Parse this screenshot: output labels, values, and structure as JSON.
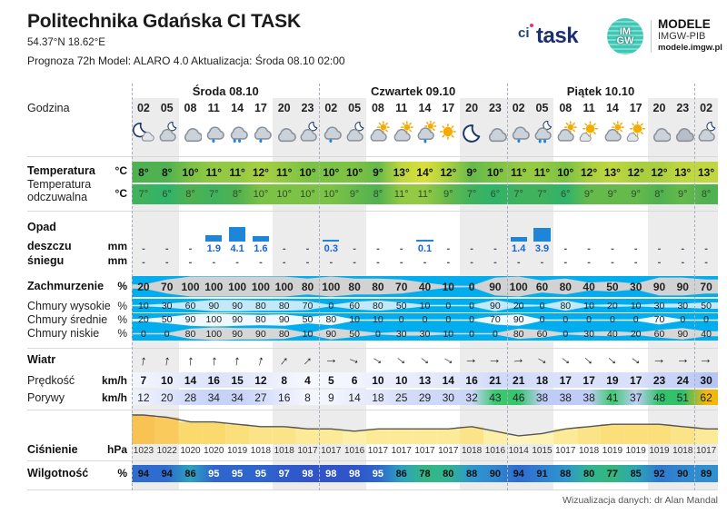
{
  "header": {
    "title": "Politechnika Gdańska CI TASK",
    "coords": "54.37°N  18.62°E",
    "meta": "Prognoza 72h   Model:  ALARO 4.0   Aktualizacja:  Środa 08.10 02:00",
    "logo_citask": {
      "ci": "ci",
      "task": "task"
    },
    "logo_imgw": {
      "circle_line1": "IM",
      "circle_line2": "GW",
      "title": "MODELE",
      "subtitle": "IMGW-PIB",
      "url": "modele.imgw.pl"
    }
  },
  "footer": {
    "credit": "Wizualizacja danych: dr Alan Mandal"
  },
  "labels": {
    "godzina": "Godzina",
    "temperatura": "Temperatura",
    "temperatura_unit": "°C",
    "odczuwalna": "Temperatura odczuwalna",
    "odczuwalna_unit": "°C",
    "opad": "Opad",
    "deszczu": "deszczu",
    "deszczu_unit": "mm",
    "sniegu": "śniegu",
    "sniegu_unit": "mm",
    "zachmurzenie": "Zachmurzenie",
    "zachmurzenie_unit": "%",
    "wysokie": "Chmury wysokie",
    "wysokie_unit": "%",
    "srednie": "Chmury średnie",
    "srednie_unit": "%",
    "niskie": "Chmury niskie",
    "niskie_unit": "%",
    "wiatr": "Wiatr",
    "predkosc": "Prędkość",
    "predkosc_unit": "km/h",
    "porywy": "Porywy",
    "porywy_unit": "km/h",
    "cisnienie": "Ciśnienie",
    "cisnienie_unit": "hPa",
    "wilgotnosc": "Wilgotność",
    "wilgotnosc_unit": "%"
  },
  "chart_data": {
    "type": "table",
    "days": [
      {
        "label": "Środa 08.10",
        "start": 0,
        "span": 8
      },
      {
        "label": "Czwartek 09.10",
        "start": 8,
        "span": 8
      },
      {
        "label": "Piątek 10.10",
        "start": 16,
        "span": 8
      }
    ],
    "hours": [
      "02",
      "05",
      "08",
      "11",
      "14",
      "17",
      "20",
      "23",
      "02",
      "05",
      "08",
      "11",
      "14",
      "17",
      "20",
      "23",
      "02",
      "05",
      "08",
      "11",
      "14",
      "17",
      "20",
      "23",
      "02"
    ],
    "night_columns": [
      0,
      1,
      6,
      7,
      8,
      9,
      14,
      15,
      16,
      17,
      22,
      23,
      24
    ],
    "icons": [
      "moon-cloud",
      "cloud-moon",
      "cloud",
      "cloud-rain-1",
      "cloud-rain-2",
      "cloud-rain-1",
      "cloud",
      "cloud-moon",
      "cloud-rain-1",
      "cloud-moon",
      "cloud-sun",
      "cloud-sun",
      "cloud-sun-rain-1",
      "sun",
      "moon",
      "cloud",
      "cloud-rain-1",
      "cloud-moon-rain-2",
      "cloud-sun",
      "sun-cloud",
      "cloud-sun",
      "sun-cloud",
      "cloud",
      "cloud-dark",
      "cloud-moon"
    ],
    "temperature": [
      8,
      8,
      10,
      11,
      11,
      12,
      11,
      10,
      10,
      10,
      9,
      13,
      14,
      12,
      9,
      10,
      11,
      11,
      10,
      12,
      13,
      12,
      12,
      13,
      13
    ],
    "feels_like": [
      7,
      6,
      8,
      7,
      8,
      10,
      10,
      10,
      10,
      9,
      8,
      11,
      11,
      9,
      7,
      6,
      7,
      7,
      6,
      9,
      9,
      9,
      8,
      9,
      8
    ],
    "rain_mm": [
      null,
      null,
      null,
      1.9,
      4.1,
      1.6,
      null,
      null,
      0.3,
      null,
      null,
      null,
      0.1,
      null,
      null,
      null,
      1.4,
      3.9,
      null,
      null,
      null,
      null,
      null,
      null,
      null
    ],
    "snow_mm": [
      null,
      null,
      null,
      null,
      null,
      null,
      null,
      null,
      null,
      null,
      null,
      null,
      null,
      null,
      null,
      null,
      null,
      null,
      null,
      null,
      null,
      null,
      null,
      null,
      null
    ],
    "cloud_total": [
      20,
      70,
      100,
      100,
      100,
      100,
      100,
      80,
      100,
      80,
      80,
      70,
      40,
      10,
      0,
      90,
      100,
      60,
      80,
      40,
      50,
      30,
      90,
      90,
      70
    ],
    "cloud_high": [
      10,
      30,
      60,
      90,
      90,
      80,
      80,
      70,
      0,
      60,
      80,
      50,
      10,
      0,
      0,
      90,
      20,
      0,
      80,
      10,
      20,
      10,
      30,
      30,
      50
    ],
    "cloud_mid": [
      20,
      50,
      90,
      100,
      90,
      80,
      90,
      50,
      80,
      10,
      10,
      0,
      0,
      0,
      0,
      70,
      90,
      0,
      0,
      0,
      0,
      0,
      70,
      0,
      0
    ],
    "cloud_low": [
      0,
      0,
      80,
      100,
      90,
      90,
      80,
      10,
      90,
      50,
      0,
      30,
      30,
      10,
      0,
      0,
      80,
      60,
      0,
      30,
      40,
      20,
      60,
      90,
      40
    ],
    "wind_dir_deg": [
      10,
      10,
      5,
      5,
      8,
      15,
      40,
      45,
      90,
      112,
      122,
      127,
      127,
      120,
      88,
      92,
      85,
      120,
      127,
      132,
      130,
      125,
      92,
      90,
      90
    ],
    "wind_speed": [
      7,
      10,
      14,
      16,
      15,
      12,
      8,
      4,
      5,
      6,
      10,
      10,
      13,
      14,
      16,
      21,
      21,
      18,
      17,
      17,
      19,
      17,
      23,
      24,
      30
    ],
    "wind_gusts": [
      12,
      20,
      28,
      34,
      34,
      27,
      16,
      8,
      9,
      14,
      18,
      25,
      29,
      30,
      32,
      43,
      46,
      38,
      38,
      38,
      41,
      37,
      48,
      51,
      62
    ],
    "pressure": [
      1023,
      1022,
      1020,
      1020,
      1019,
      1018,
      1018,
      1017,
      1017,
      1016,
      1017,
      1017,
      1017,
      1017,
      1018,
      1016,
      1014,
      1015,
      1017,
      1018,
      1019,
      1019,
      1019,
      1018,
      1017
    ],
    "humidity": [
      94,
      94,
      86,
      95,
      95,
      95,
      97,
      98,
      98,
      98,
      95,
      86,
      78,
      80,
      88,
      90,
      94,
      91,
      88,
      80,
      77,
      85,
      92,
      90,
      89
    ]
  },
  "colors": {
    "band_blue": "#00aeef",
    "lens_total": "#d2d2d2",
    "lens_high": "#c3e9f8",
    "lens_mid": "#eef8fd",
    "lens_low": "#d6d6d6",
    "rain_bar": "#1e86d8",
    "rain_text": "#1565d8",
    "dash_text": "#4a5568",
    "night_shade": "#ececec",
    "pressure_line": "#555555",
    "link": "#1c63d6",
    "temp_scale": [
      [
        6,
        "#2fb36a"
      ],
      [
        8,
        "#50b150"
      ],
      [
        10,
        "#7cc245"
      ],
      [
        12,
        "#a9cf41"
      ],
      [
        14,
        "#d9df3c"
      ]
    ],
    "speed_scale": [
      [
        4,
        "#f6f8fe"
      ],
      [
        12,
        "#e7ecfc"
      ],
      [
        20,
        "#d3dcf9"
      ],
      [
        30,
        "#b6c5f4"
      ]
    ],
    "gust_scale": [
      [
        8,
        "#f4f6fe"
      ],
      [
        38,
        "#bfccf7"
      ],
      [
        40,
        "#3ecb72"
      ],
      [
        51,
        "#2fc06a"
      ],
      [
        62,
        "#f2b70c"
      ]
    ],
    "humidity_scale": [
      [
        77,
        "#35b67e"
      ],
      [
        83,
        "#2bb3a6"
      ],
      [
        88,
        "#2f96cf"
      ],
      [
        93,
        "#2f72d2"
      ],
      [
        98,
        "#2f55c9"
      ]
    ],
    "pressure_scale": [
      [
        1014,
        "#fdf5bd"
      ],
      [
        1016,
        "#fcf0a6"
      ],
      [
        1018,
        "#fbe488"
      ],
      [
        1020,
        "#fbd96d"
      ],
      [
        1023,
        "#f9c353"
      ]
    ]
  }
}
